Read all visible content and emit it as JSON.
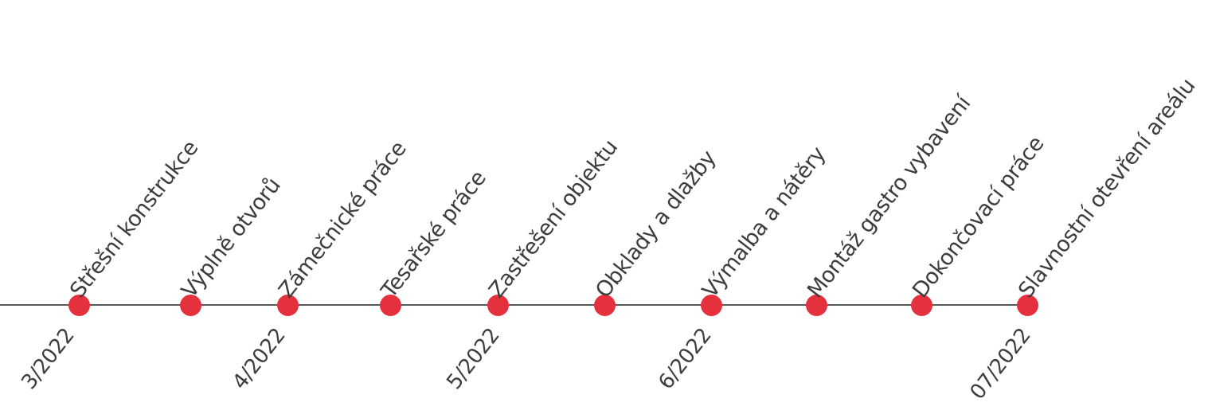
{
  "colors": {
    "dot": "#e5313d",
    "line": "#5a5a5a",
    "text": "#3d3d3d"
  },
  "milestones": [
    {
      "label": "Střešní konstrukce"
    },
    {
      "label": "Výplně otvorů"
    },
    {
      "label": "Zámečnické práce"
    },
    {
      "label": "Tesařské práce"
    },
    {
      "label": "Zastřešení objektu"
    },
    {
      "label": "Obklady a dlažby"
    },
    {
      "label": "Výmalba a nátěry"
    },
    {
      "label": "Montáž gastro vybavení"
    },
    {
      "label": "Dokončovací práce"
    },
    {
      "label": "Slavnostní otevření areálu"
    }
  ],
  "dates": [
    {
      "label": "3/2022"
    },
    {
      "label": "4/2022"
    },
    {
      "label": "5/2022"
    },
    {
      "label": "6/2022"
    },
    {
      "label": "07/2022"
    }
  ]
}
